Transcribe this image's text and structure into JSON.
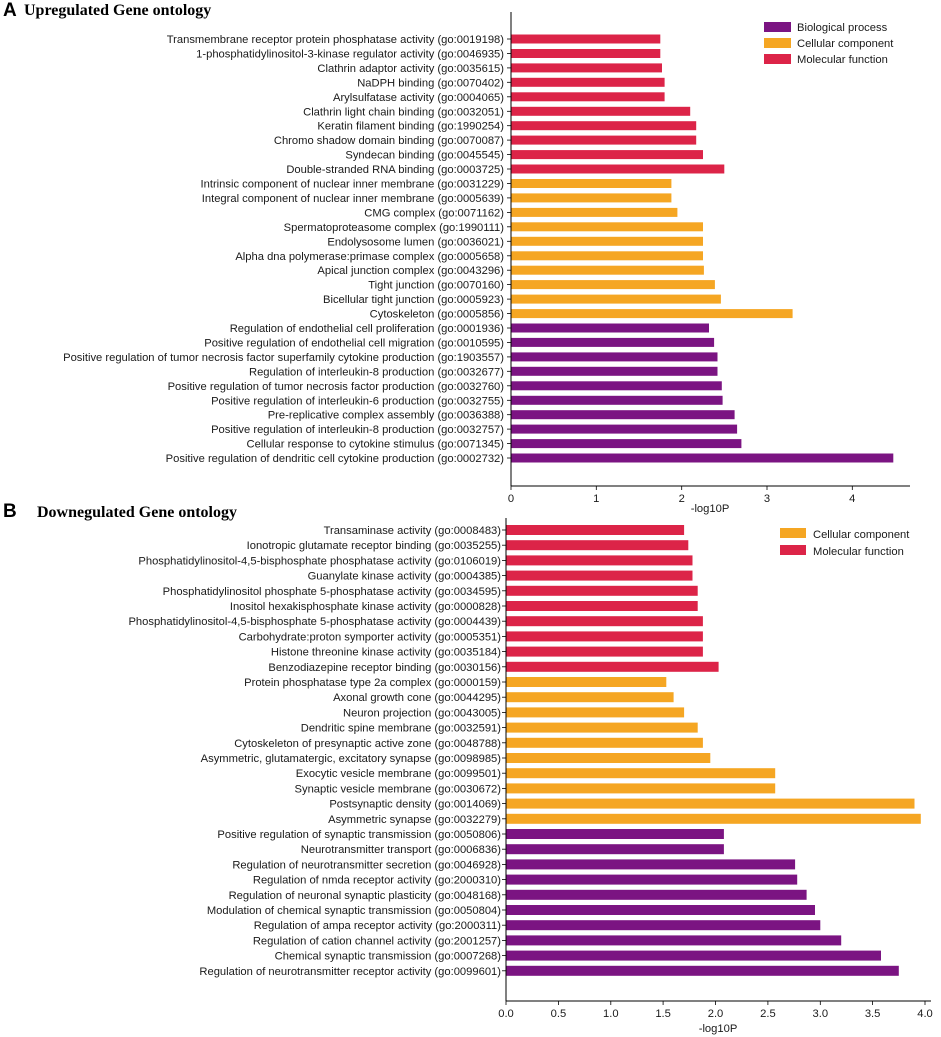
{
  "colors": {
    "Biological process": "#7b1482",
    "Cellular component": "#f5a623",
    "Molecular function": "#dc2448"
  },
  "chart_data": [
    {
      "type": "bar",
      "orientation": "horizontal",
      "panel_letter": "A",
      "title": "Upregulated Gene ontology",
      "xlabel": "-log10P",
      "ylabel": "",
      "xlim": [
        0,
        4.7
      ],
      "xticks": [
        0,
        1,
        2,
        3,
        4
      ],
      "xtick_labels": [
        "0",
        "1",
        "2",
        "3",
        "4"
      ],
      "legend": [
        "Biological process",
        "Cellular component",
        "Molecular function"
      ],
      "legend_position": "top-right",
      "bars": [
        {
          "label": "Transmembrane receptor protein phosphatase activity (go:0019198)",
          "value": 1.75,
          "group": "Molecular function"
        },
        {
          "label": "1-phosphatidylinositol-3-kinase regulator activity (go:0046935)",
          "value": 1.75,
          "group": "Molecular function"
        },
        {
          "label": "Clathrin adaptor activity (go:0035615)",
          "value": 1.77,
          "group": "Molecular function"
        },
        {
          "label": "NaDPH binding (go:0070402)",
          "value": 1.8,
          "group": "Molecular function"
        },
        {
          "label": "Arylsulfatase activity (go:0004065)",
          "value": 1.8,
          "group": "Molecular function"
        },
        {
          "label": "Clathrin light chain binding (go:0032051)",
          "value": 2.1,
          "group": "Molecular function"
        },
        {
          "label": "Keratin filament binding (go:1990254)",
          "value": 2.17,
          "group": "Molecular function"
        },
        {
          "label": "Chromo shadow domain binding (go:0070087)",
          "value": 2.17,
          "group": "Molecular function"
        },
        {
          "label": "Syndecan binding (go:0045545)",
          "value": 2.25,
          "group": "Molecular function"
        },
        {
          "label": "Double-stranded RNA binding (go:0003725)",
          "value": 2.5,
          "group": "Molecular function"
        },
        {
          "label": "Intrinsic component of nuclear inner membrane (go:0031229)",
          "value": 1.88,
          "group": "Cellular component"
        },
        {
          "label": "Integral component of nuclear inner membrane (go:0005639)",
          "value": 1.88,
          "group": "Cellular component"
        },
        {
          "label": "CMG complex (go:0071162)",
          "value": 1.95,
          "group": "Cellular component"
        },
        {
          "label": "Spermatoproteasome complex (go:1990111)",
          "value": 2.25,
          "group": "Cellular component"
        },
        {
          "label": "Endolysosome lumen (go:0036021)",
          "value": 2.25,
          "group": "Cellular component"
        },
        {
          "label": "Alpha dna polymerase:primase complex (go:0005658)",
          "value": 2.25,
          "group": "Cellular component"
        },
        {
          "label": "Apical junction complex (go:0043296)",
          "value": 2.26,
          "group": "Cellular component"
        },
        {
          "label": "Tight junction (go:0070160)",
          "value": 2.39,
          "group": "Cellular component"
        },
        {
          "label": "Bicellular tight junction (go:0005923)",
          "value": 2.46,
          "group": "Cellular component"
        },
        {
          "label": "Cytoskeleton (go:0005856)",
          "value": 3.3,
          "group": "Cellular component"
        },
        {
          "label": "Regulation of endothelial cell proliferation (go:0001936)",
          "value": 2.32,
          "group": "Biological process"
        },
        {
          "label": "Positive regulation of endothelial cell migration (go:0010595)",
          "value": 2.38,
          "group": "Biological process"
        },
        {
          "label": "Positive regulation of tumor necrosis factor superfamily cytokine production (go:1903557)",
          "value": 2.42,
          "group": "Biological process"
        },
        {
          "label": "Regulation of interleukin-8 production (go:0032677)",
          "value": 2.42,
          "group": "Biological process"
        },
        {
          "label": "Positive regulation of tumor necrosis factor production (go:0032760)",
          "value": 2.47,
          "group": "Biological process"
        },
        {
          "label": "Positive regulation of interleukin-6 production (go:0032755)",
          "value": 2.48,
          "group": "Biological process"
        },
        {
          "label": "Pre-replicative complex assembly (go:0036388)",
          "value": 2.62,
          "group": "Biological process"
        },
        {
          "label": "Positive regulation of interleukin-8 production (go:0032757)",
          "value": 2.65,
          "group": "Biological process"
        },
        {
          "label": "Cellular response to cytokine stimulus (go:0071345)",
          "value": 2.7,
          "group": "Biological process"
        },
        {
          "label": "Positive regulation of dendritic cell cytokine production (go:0002732)",
          "value": 4.48,
          "group": "Biological process"
        }
      ]
    },
    {
      "type": "bar",
      "orientation": "horizontal",
      "panel_letter": "B",
      "title": "Downegulated Gene ontology",
      "xlabel": "-log10P",
      "ylabel": "",
      "xlim": [
        0,
        4.1
      ],
      "xticks": [
        0,
        0.5,
        1,
        1.5,
        2,
        2.5,
        3,
        3.5,
        4
      ],
      "xtick_labels": [
        "0.0",
        "0.5",
        "1.0",
        "1.5",
        "2.0",
        "2.5",
        "3.0",
        "3.5",
        "4.0"
      ],
      "legend": [
        "Cellular component",
        "Molecular function"
      ],
      "legend_position": "top-right",
      "bars": [
        {
          "label": "Transaminase activity (go:0008483)",
          "value": 1.7,
          "group": "Molecular function"
        },
        {
          "label": "Ionotropic glutamate receptor binding (go:0035255)",
          "value": 1.74,
          "group": "Molecular function"
        },
        {
          "label": "Phosphatidylinositol-4,5-bisphosphate phosphatase activity (go:0106019)",
          "value": 1.78,
          "group": "Molecular function"
        },
        {
          "label": "Guanylate kinase activity (go:0004385)",
          "value": 1.78,
          "group": "Molecular function"
        },
        {
          "label": "Phosphatidylinositol phosphate 5-phosphatase activity (go:0034595)",
          "value": 1.83,
          "group": "Molecular function"
        },
        {
          "label": "Inositol hexakisphosphate kinase activity (go:0000828)",
          "value": 1.83,
          "group": "Molecular function"
        },
        {
          "label": "Phosphatidylinositol-4,5-bisphosphate 5-phosphatase activity (go:0004439)",
          "value": 1.88,
          "group": "Molecular function"
        },
        {
          "label": "Carbohydrate:proton symporter activity (go:0005351)",
          "value": 1.88,
          "group": "Molecular function"
        },
        {
          "label": "Histone threonine kinase activity (go:0035184)",
          "value": 1.88,
          "group": "Molecular function"
        },
        {
          "label": "Benzodiazepine receptor binding (go:0030156)",
          "value": 2.03,
          "group": "Molecular function"
        },
        {
          "label": "Protein phosphatase type 2a complex (go:0000159)",
          "value": 1.53,
          "group": "Cellular component"
        },
        {
          "label": "Axonal growth cone (go:0044295)",
          "value": 1.6,
          "group": "Cellular component"
        },
        {
          "label": "Neuron projection (go:0043005)",
          "value": 1.7,
          "group": "Cellular component"
        },
        {
          "label": "Dendritic spine membrane (go:0032591)",
          "value": 1.83,
          "group": "Cellular component"
        },
        {
          "label": "Cytoskeleton of presynaptic active zone (go:0048788)",
          "value": 1.88,
          "group": "Cellular component"
        },
        {
          "label": "Asymmetric, glutamatergic, excitatory synapse (go:0098985)",
          "value": 1.95,
          "group": "Cellular component"
        },
        {
          "label": "Exocytic vesicle membrane (go:0099501)",
          "value": 2.57,
          "group": "Cellular component"
        },
        {
          "label": "Synaptic vesicle membrane (go:0030672)",
          "value": 2.57,
          "group": "Cellular component"
        },
        {
          "label": "Postsynaptic density (go:0014069)",
          "value": 3.9,
          "group": "Cellular component"
        },
        {
          "label": "Asymmetric synapse (go:0032279)",
          "value": 3.96,
          "group": "Cellular component"
        },
        {
          "label": "Positive regulation of synaptic transmission (go:0050806)",
          "value": 2.08,
          "group": "Biological process"
        },
        {
          "label": "Neurotransmitter transport (go:0006836)",
          "value": 2.08,
          "group": "Biological process"
        },
        {
          "label": "Regulation of neurotransmitter secretion (go:0046928)",
          "value": 2.76,
          "group": "Biological process"
        },
        {
          "label": "Regulation of nmda receptor activity (go:2000310)",
          "value": 2.78,
          "group": "Biological process"
        },
        {
          "label": "Regulation of neuronal synaptic plasticity (go:0048168)",
          "value": 2.87,
          "group": "Biological process"
        },
        {
          "label": "Modulation of chemical synaptic transmission (go:0050804)",
          "value": 2.95,
          "group": "Biological process"
        },
        {
          "label": "Regulation of ampa receptor activity (go:2000311)",
          "value": 3.0,
          "group": "Biological process"
        },
        {
          "label": "Regulation of cation channel activity (go:2001257)",
          "value": 3.2,
          "group": "Biological process"
        },
        {
          "label": "Chemical synaptic transmission (go:0007268)",
          "value": 3.58,
          "group": "Biological process"
        },
        {
          "label": "Regulation of neurotransmitter receptor activity (go:0099601)",
          "value": 3.75,
          "group": "Biological process"
        }
      ]
    }
  ]
}
